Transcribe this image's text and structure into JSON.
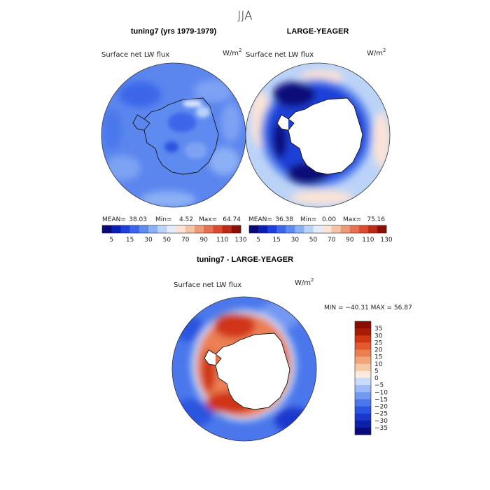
{
  "figure": {
    "title": "JJA"
  },
  "colors": {
    "abs_scale": [
      "#08087a",
      "#0a1fb0",
      "#1e40d8",
      "#3a66ea",
      "#5e8bf0",
      "#8cb0f5",
      "#bcd3f8",
      "#e2ecfb",
      "#fbe3d6",
      "#f6c2a8",
      "#ee9a78",
      "#e6714e",
      "#d94c2c",
      "#b82b14",
      "#8a0f04"
    ],
    "diff_scale": [
      "#0b0b80",
      "#0e20a8",
      "#1a38cc",
      "#2a55e0",
      "#4a78ec",
      "#7398f2",
      "#9dbaf6",
      "#c8daf9",
      "#fbeadc",
      "#f7c8a6",
      "#f2a57a",
      "#ec7f52",
      "#e3592f",
      "#cf3612",
      "#a51a04",
      "#8a0b02"
    ],
    "land": "#ffffff",
    "coast": "#111111"
  },
  "chart_data": [
    {
      "type": "map",
      "panel": "left",
      "title": "tuning7 (yrs 1979-1979)",
      "field": "Surface net LW flux",
      "units": "W/m",
      "units_exp": "2",
      "stats": {
        "mean_label": "MEAN=",
        "mean": "38.03",
        "min_label": "Min=",
        "min": "4.52",
        "max_label": "Max=",
        "max": "64.74"
      },
      "colorbar_ticks": [
        "5",
        "15",
        "30",
        "50",
        "70",
        "90",
        "110",
        "130"
      ]
    },
    {
      "type": "map",
      "panel": "right",
      "title": "LARGE-YEAGER",
      "field": "Surface net LW flux",
      "units": "W/m",
      "units_exp": "2",
      "stats": {
        "mean_label": "MEAN=",
        "mean": "36.38",
        "min_label": "Min=",
        "min": "0.00",
        "max_label": "Max=",
        "max": "75.16"
      },
      "colorbar_ticks": [
        "5",
        "15",
        "30",
        "50",
        "70",
        "90",
        "110",
        "130"
      ]
    },
    {
      "type": "map",
      "panel": "difference",
      "title": "tuning7 - LARGE-YEAGER",
      "field": "Surface net LW flux",
      "units": "W/m",
      "units_exp": "2",
      "stats_text": "MIN = −40.31  MAX =  56.87",
      "colorbar_ticks": [
        "35",
        "30",
        "25",
        "20",
        "15",
        "10",
        "5",
        "0",
        "−5",
        "−10",
        "−15",
        "−20",
        "−25",
        "−30",
        "−35"
      ]
    }
  ]
}
